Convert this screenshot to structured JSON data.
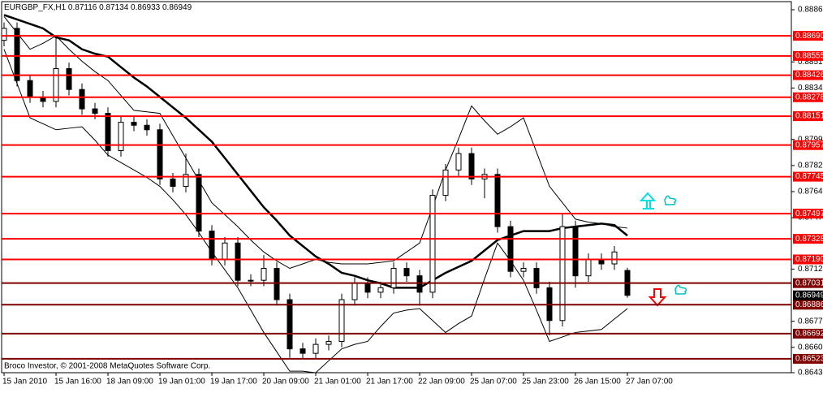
{
  "chart_data": {
    "type": "candlestick",
    "title": "EURGBP_FX,H1",
    "annotation": "Broco Investor, © 2001-2008 MetaQuotes Software Corp.",
    "categories": [
      "15 Jan 2010",
      null,
      null,
      null,
      "15 Jan 16:00",
      null,
      null,
      null,
      "18 Jan 09:00",
      null,
      null,
      null,
      "19 Jan 01:00",
      null,
      null,
      null,
      "19 Jan 17:00",
      null,
      null,
      null,
      "20 Jan 09:00",
      null,
      null,
      null,
      "21 Jan 01:00",
      null,
      null,
      null,
      "21 Jan 17:00",
      null,
      null,
      null,
      "22 Jan 09:00",
      null,
      null,
      null,
      "25 Jan 07:00",
      null,
      null,
      null,
      "25 Jan 23:00",
      null,
      null,
      null,
      "26 Jan 15:00",
      null,
      null,
      null,
      "27 Jan 07:00"
    ],
    "open": [
      0.8866,
      0.8874,
      0.8839,
      0.8828,
      0.8825,
      0.8847,
      0.8833,
      0.882,
      0.8817,
      0.8792,
      0.8811,
      0.8809,
      0.8806,
      0.8773,
      0.8768,
      0.8776,
      0.8738,
      0.8719,
      0.873,
      0.8705,
      0.8705,
      0.8713,
      0.8692,
      0.8659,
      0.8656,
      0.8662,
      0.8664,
      0.8692,
      0.8703,
      0.8697,
      0.87,
      0.8713,
      0.8708,
      0.8697,
      0.8762,
      0.8779,
      0.879,
      0.8773,
      0.8776,
      0.8741,
      0.8711,
      0.8713,
      0.87,
      0.8678,
      0.8741,
      0.8708,
      0.8719,
      0.8716,
      0.87116
    ],
    "high": [
      0.8878,
      0.8878,
      0.8843,
      0.8832,
      0.8868,
      0.8851,
      0.8837,
      0.8824,
      0.8821,
      0.8815,
      0.8815,
      0.8813,
      0.881,
      0.8777,
      0.879,
      0.878,
      0.8742,
      0.8734,
      0.8734,
      0.8709,
      0.8722,
      0.8717,
      0.8696,
      0.8663,
      0.8666,
      0.8668,
      0.8696,
      0.8707,
      0.8707,
      0.8704,
      0.8717,
      0.8717,
      0.8712,
      0.8766,
      0.8783,
      0.8794,
      0.8794,
      0.878,
      0.878,
      0.8745,
      0.8717,
      0.8717,
      0.8704,
      0.875,
      0.8745,
      0.8723,
      0.8723,
      0.8728,
      0.87134
    ],
    "low": [
      0.8862,
      0.8835,
      0.8824,
      0.8821,
      0.8821,
      0.8829,
      0.8816,
      0.8813,
      0.8788,
      0.8788,
      0.8805,
      0.8802,
      0.8769,
      0.8764,
      0.8764,
      0.8734,
      0.8715,
      0.8715,
      0.8701,
      0.8701,
      0.8701,
      0.8688,
      0.8653,
      0.8652,
      0.8652,
      0.8658,
      0.866,
      0.8688,
      0.8693,
      0.8693,
      0.8696,
      0.8704,
      0.8688,
      0.8693,
      0.8758,
      0.8775,
      0.8769,
      0.876,
      0.8737,
      0.8707,
      0.8707,
      0.8696,
      0.8668,
      0.8674,
      0.87,
      0.8704,
      0.8712,
      0.8712,
      0.86933
    ],
    "close": [
      0.8874,
      0.8839,
      0.8828,
      0.8825,
      0.8847,
      0.8833,
      0.882,
      0.8817,
      0.8792,
      0.8811,
      0.8809,
      0.8806,
      0.8773,
      0.8768,
      0.8776,
      0.8738,
      0.8719,
      0.873,
      0.8705,
      0.8705,
      0.8713,
      0.8692,
      0.8659,
      0.8656,
      0.8662,
      0.8664,
      0.8692,
      0.8703,
      0.8697,
      0.87,
      0.8713,
      0.8708,
      0.8697,
      0.8762,
      0.8779,
      0.879,
      0.8773,
      0.8776,
      0.8741,
      0.8711,
      0.8713,
      0.87,
      0.8678,
      0.8741,
      0.8708,
      0.8719,
      0.8716,
      0.8724,
      0.86949
    ],
    "overlays": [
      {
        "color": "#000000",
        "values": [
          0.8883,
          0.888,
          0.8877,
          0.8874,
          0.8868,
          0.8866,
          0.886,
          0.8857,
          0.8855,
          0.8848,
          0.8841,
          0.8835,
          0.8828,
          0.8821,
          0.8814,
          0.8806,
          0.8798,
          0.8787,
          0.8776,
          0.8765,
          0.8754,
          0.8745,
          0.8735,
          0.8728,
          0.8721,
          0.8716,
          0.871,
          0.8708,
          0.8705,
          0.8703,
          0.87,
          0.87,
          0.87,
          0.8705,
          0.871,
          0.8714,
          0.8718,
          0.8725,
          0.8732,
          0.8735,
          0.8738,
          0.8738,
          0.8738,
          0.874,
          0.8741,
          0.8742,
          0.8743,
          0.8742,
          0.8735
        ]
      },
      {
        "color": "#000000",
        "values": [
          0.8882,
          0.8871,
          0.886,
          0.8864,
          0.8869,
          0.886,
          0.8852,
          0.8845,
          0.8839,
          0.8829,
          0.8819,
          0.8818,
          0.8817,
          0.8802,
          0.8787,
          0.8772,
          0.8757,
          0.8749,
          0.8741,
          0.8732,
          0.8724,
          0.8718,
          0.8713,
          0.8716,
          0.8719,
          0.8717,
          0.8716,
          0.8716,
          0.8716,
          0.8717,
          0.8718,
          0.8724,
          0.873,
          0.8754,
          0.8779,
          0.88,
          0.8822,
          0.8812,
          0.8803,
          0.8808,
          0.8814,
          0.8791,
          0.8768,
          0.8757,
          0.8746,
          0.8744,
          0.8743,
          0.8741,
          0.874
        ]
      },
      {
        "color": "#000000",
        "values": [
          0.886,
          0.8837,
          0.8814,
          0.881,
          0.8806,
          0.8807,
          0.8808,
          0.8799,
          0.8789,
          0.8784,
          0.8779,
          0.8774,
          0.8768,
          0.8759,
          0.8749,
          0.8737,
          0.8724,
          0.8712,
          0.87,
          0.8685,
          0.867,
          0.8657,
          0.8644,
          0.8644,
          0.8643,
          0.8651,
          0.8659,
          0.8662,
          0.8664,
          0.8674,
          0.8683,
          0.8685,
          0.8686,
          0.8678,
          0.867,
          0.8676,
          0.8681,
          0.8706,
          0.873,
          0.8718,
          0.8705,
          0.8685,
          0.8664,
          0.8667,
          0.867,
          0.8671,
          0.8672,
          0.8679,
          0.8686
        ]
      }
    ],
    "levels": [
      {
        "value": 0.8869,
        "label": "0.88690",
        "color": "#ff0000"
      },
      {
        "value": 0.88555,
        "label": "0.88555",
        "color": "#ff0000"
      },
      {
        "value": 0.88426,
        "label": "0.88426",
        "color": "#ff0000"
      },
      {
        "value": 0.88278,
        "label": "0.88278",
        "color": "#ff0000"
      },
      {
        "value": 0.88151,
        "label": "0.88151",
        "color": "#ff0000"
      },
      {
        "value": 0.87957,
        "label": "0.87957",
        "color": "#ff0000"
      },
      {
        "value": 0.87745,
        "label": "0.87745",
        "color": "#ff0000"
      },
      {
        "value": 0.87497,
        "label": "0.87497",
        "color": "#ff0000"
      },
      {
        "value": 0.87328,
        "label": "0.87328",
        "color": "#ff0000"
      },
      {
        "value": 0.8719,
        "label": "0.87190",
        "color": "#ff0000"
      },
      {
        "value": 0.87031,
        "label": "0.87031",
        "color": "#800000"
      },
      {
        "value": 0.86886,
        "label": "0.86886",
        "color": "#800000"
      },
      {
        "value": 0.86692,
        "label": "0.86692",
        "color": "#800000"
      },
      {
        "value": 0.86523,
        "label": "0.86523",
        "color": "#800000"
      }
    ],
    "ylim": [
      0.8643,
      0.88865
    ],
    "yticks": [
      0.88865,
      0.88515,
      {
        "value": 0.8834,
        "label": "0.88340"
      },
      0.87995,
      {
        "value": 0.8782,
        "label": "0.87820"
      },
      0.87645,
      {
        "value": 0.8747,
        "label": "0.87470"
      },
      0.87125,
      0.86775,
      {
        "value": 0.866,
        "label": "0.86600"
      },
      {
        "value": 0.8643,
        "label": "0.86430"
      }
    ]
  }
}
